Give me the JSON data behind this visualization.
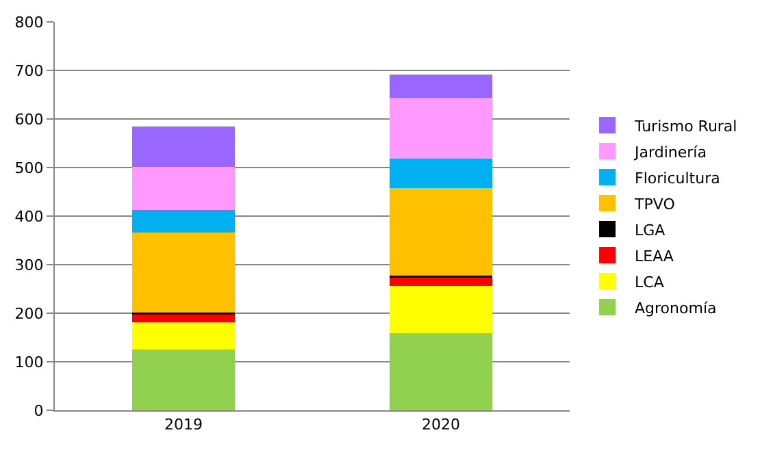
{
  "chart_data": {
    "type": "bar",
    "stacked": true,
    "categories": [
      "2019",
      "2020"
    ],
    "series": [
      {
        "name": "Agronomía",
        "color": "#92d050",
        "values": [
          125,
          159
        ]
      },
      {
        "name": "LCA",
        "color": "#ffff00",
        "values": [
          57,
          98
        ]
      },
      {
        "name": "LEAA",
        "color": "#ff0000",
        "values": [
          17,
          18
        ]
      },
      {
        "name": "LGA",
        "color": "#000000",
        "values": [
          2,
          2
        ]
      },
      {
        "name": "TPVO",
        "color": "#ffc000",
        "values": [
          165,
          181
        ]
      },
      {
        "name": "Floricultura",
        "color": "#00b0f0",
        "values": [
          46,
          61
        ]
      },
      {
        "name": "Jardinería",
        "color": "#ff99ff",
        "values": [
          90,
          125
        ]
      },
      {
        "name": "Turismo Rural",
        "color": "#9966ff",
        "values": [
          83,
          48
        ]
      }
    ],
    "ylim": [
      0,
      800
    ],
    "yticks": [
      0,
      100,
      200,
      300,
      400,
      500,
      600,
      700,
      800
    ],
    "grid": "y",
    "legend": "right"
  }
}
